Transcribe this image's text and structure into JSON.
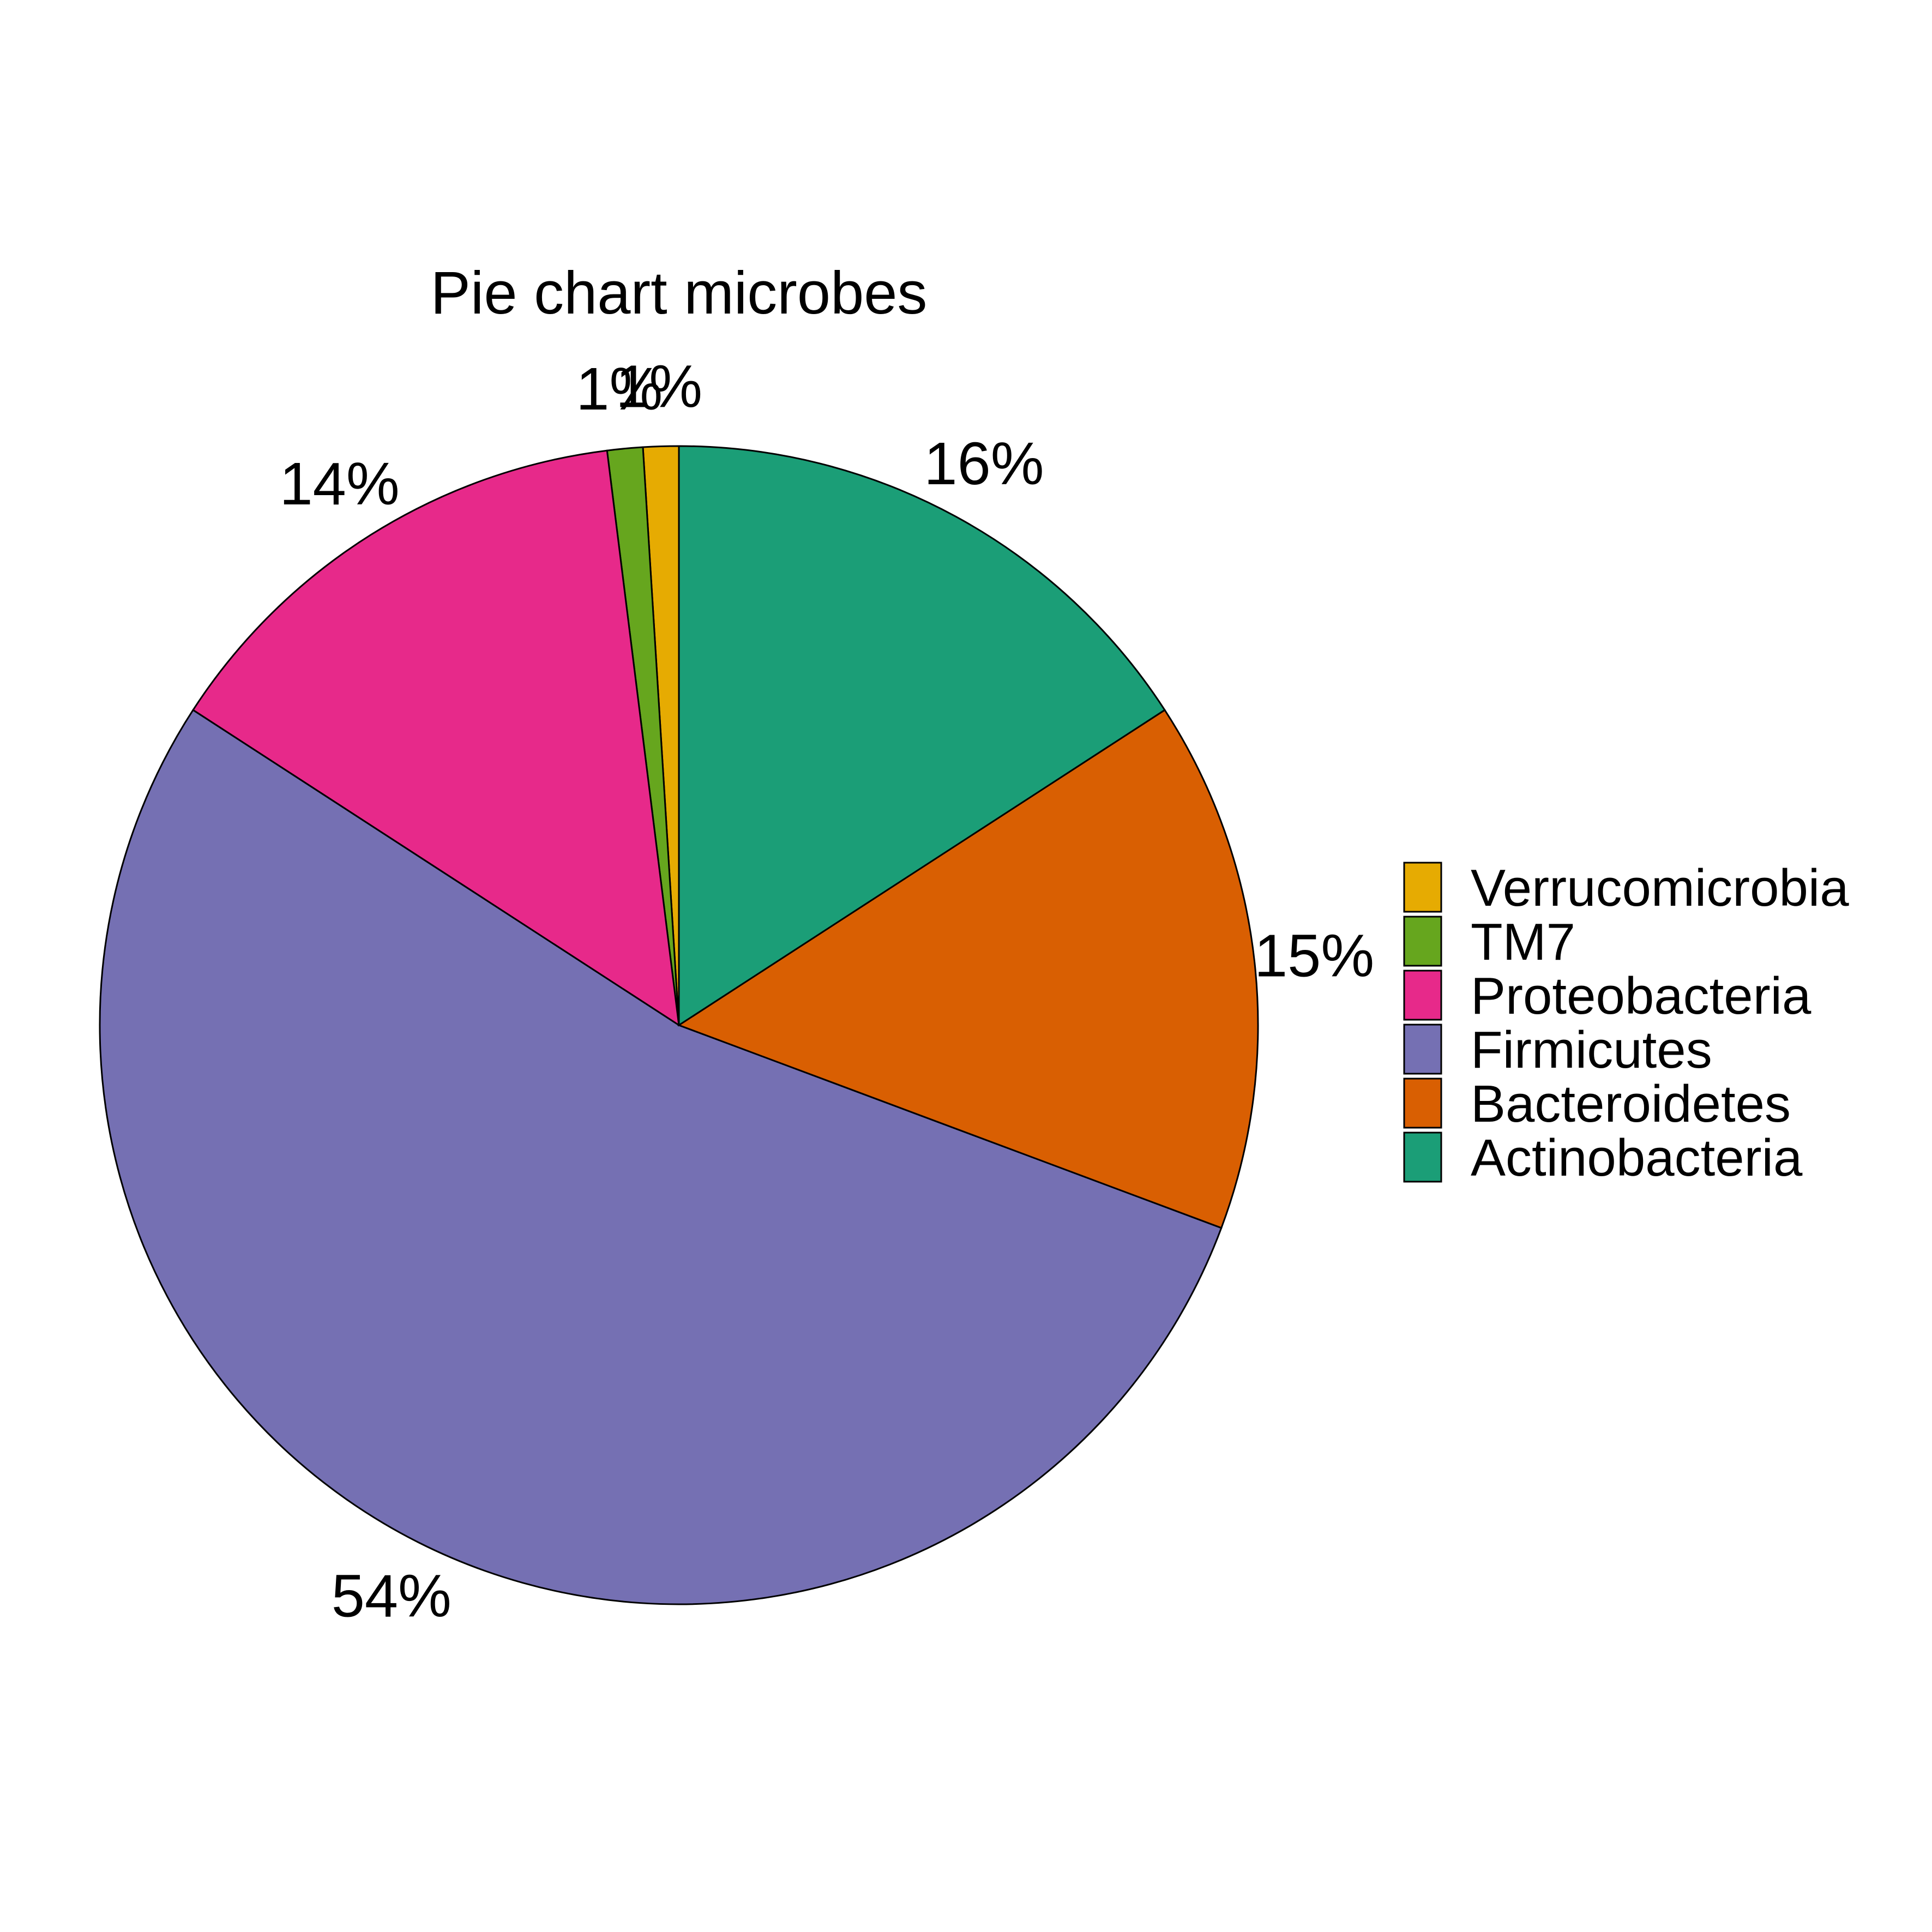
{
  "chart_data": {
    "type": "pie",
    "title": "Pie chart microbes",
    "categories": [
      "Verrucomicrobia",
      "TM7",
      "Proteobacteria",
      "Firmicutes",
      "Bacteroidetes",
      "Actinobacteria"
    ],
    "values": [
      1,
      1,
      14,
      54,
      15,
      16
    ],
    "labels": [
      "1%",
      "1%",
      "14%",
      "54%",
      "15%",
      "16%"
    ],
    "colors": [
      "#E6AB02",
      "#66A61E",
      "#E7298A",
      "#7570B3",
      "#D95F02",
      "#1B9E77"
    ],
    "direction": "counter-clockwise from top",
    "legend_placement": "right"
  }
}
